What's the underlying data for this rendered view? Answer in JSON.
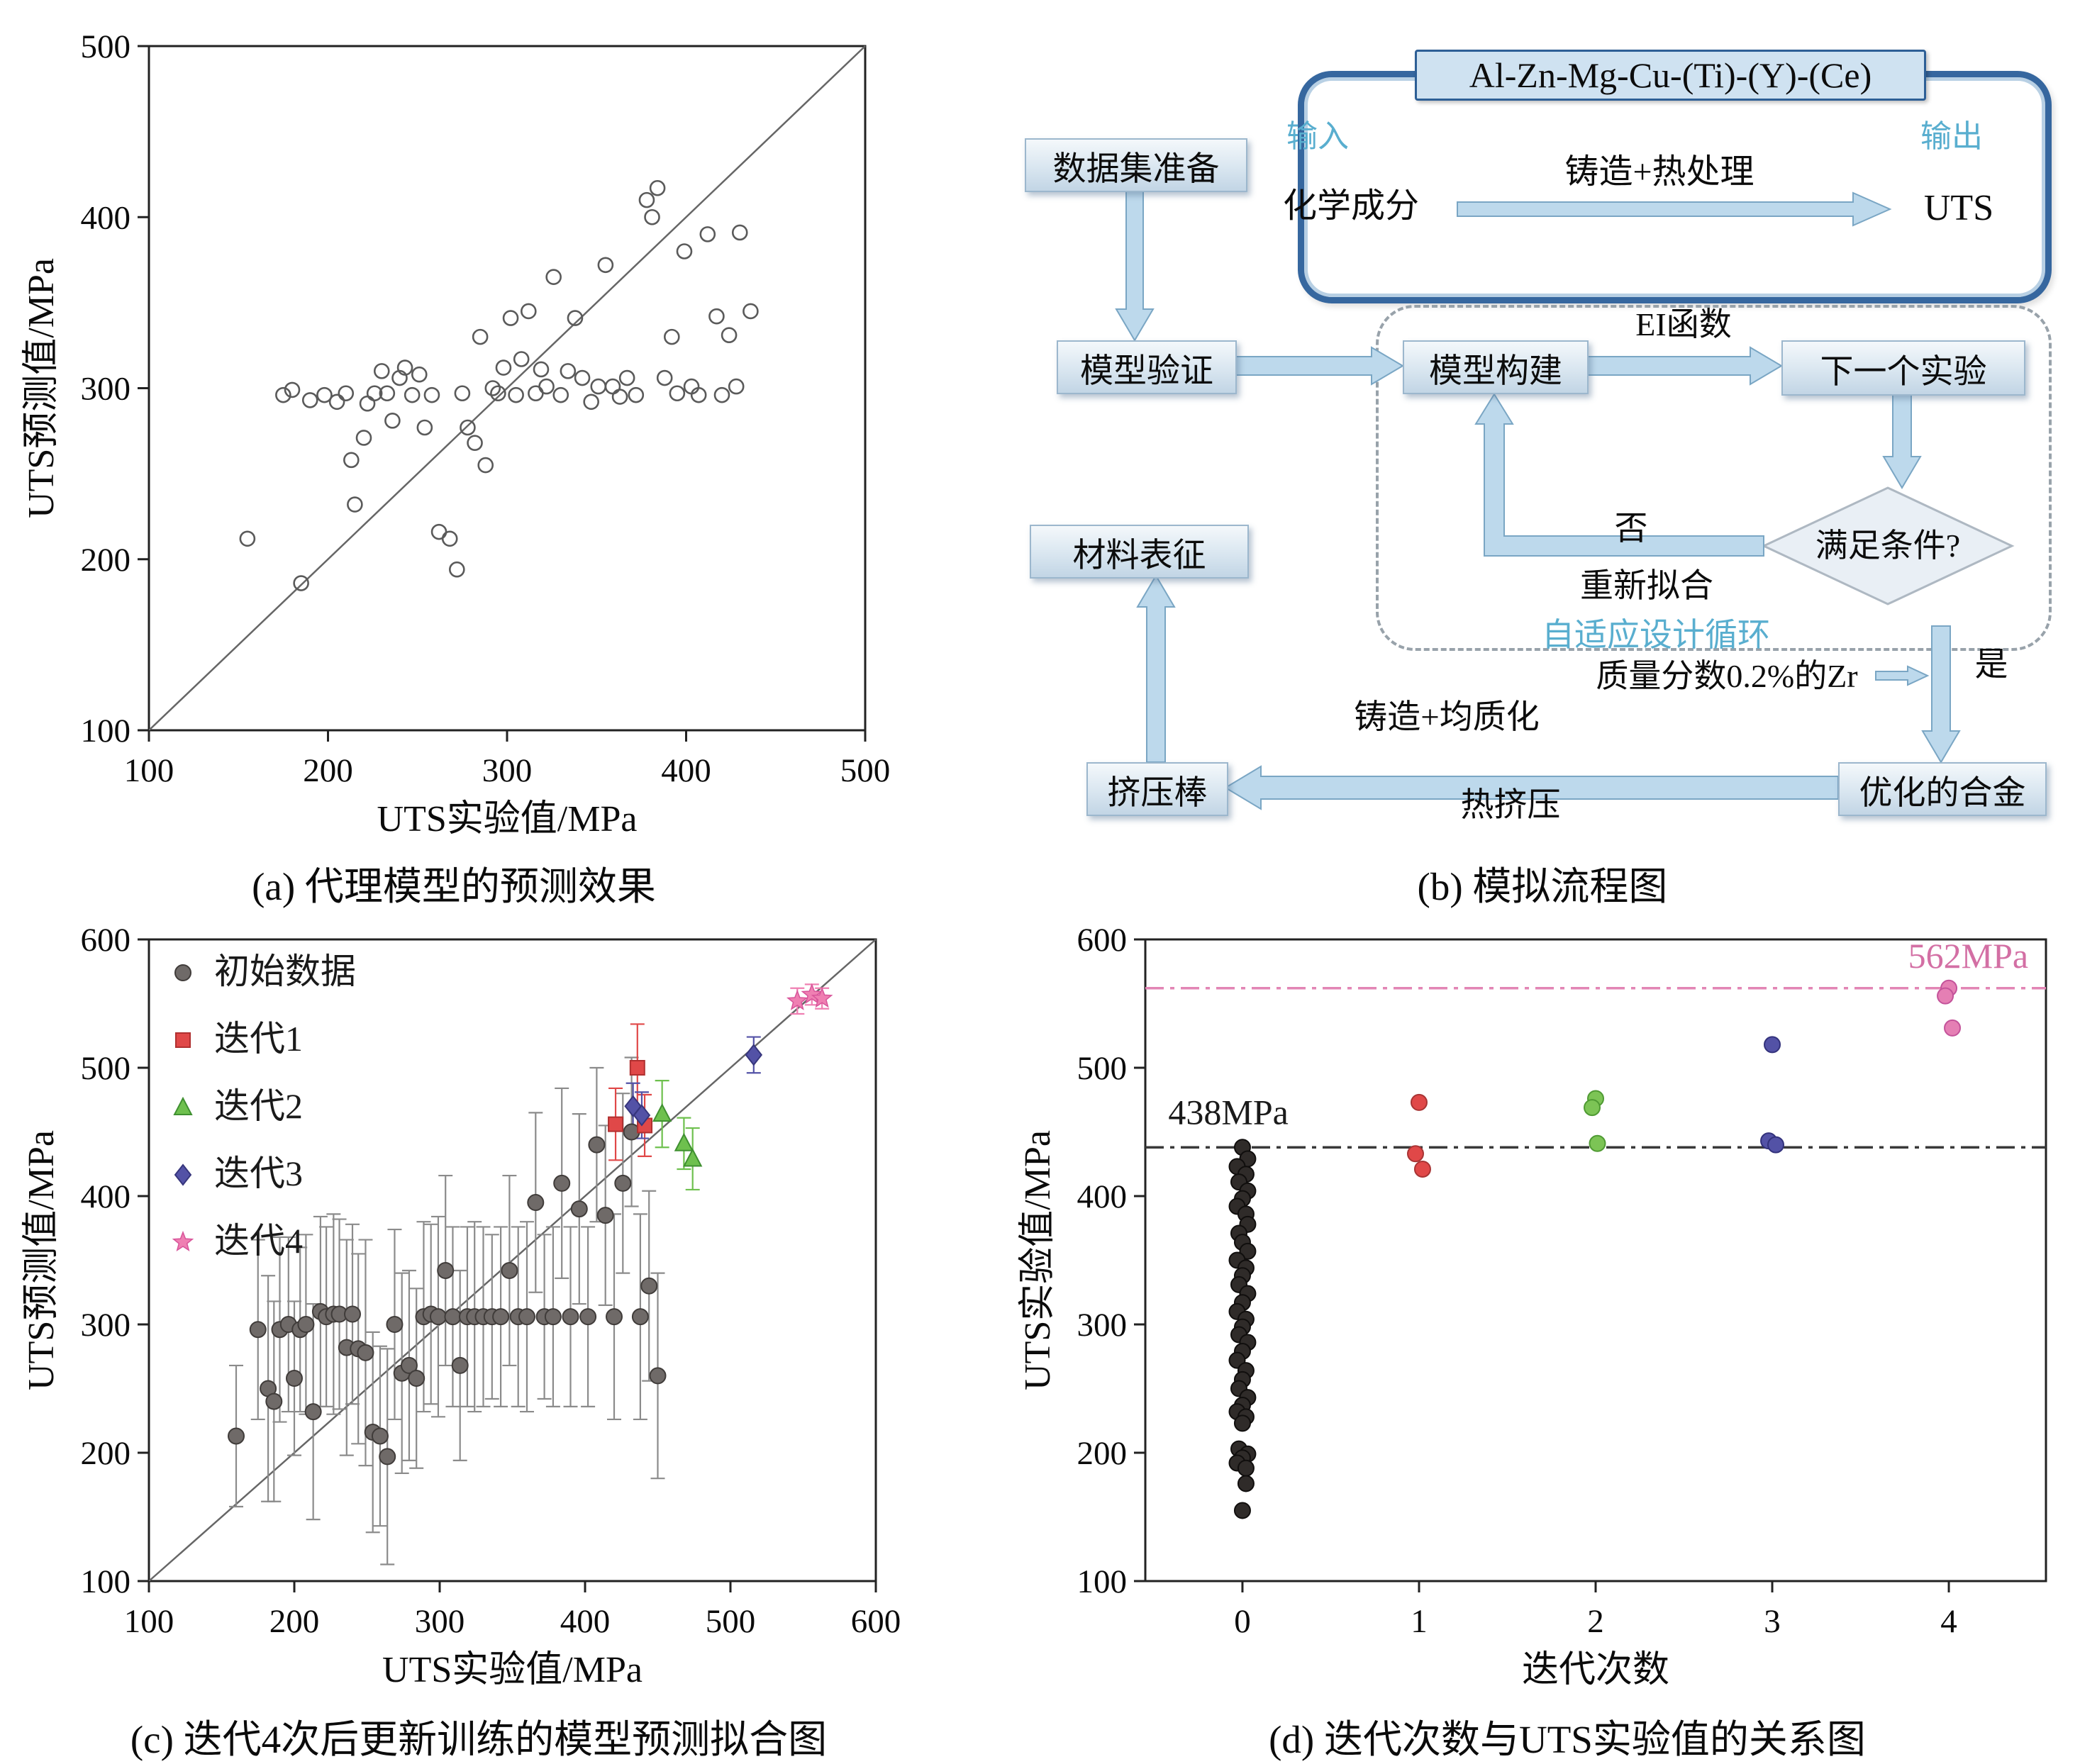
{
  "captions": {
    "a": "(a) 代理模型的预测效果",
    "b": "(b) 模拟流程图",
    "c": "(c) 迭代4次后更新训练的模型预测拟合图",
    "d": "(d) 迭代次数与UTS实验值的关系图"
  },
  "flowchart": {
    "alloy_title": "Al-Zn-Mg-Cu-(Ti)-(Y)-(Ce)",
    "input_label": "输入",
    "output_label": "输出",
    "chem_comp": "化学成分",
    "cast_heat": "铸造+热处理",
    "uts": "UTS",
    "dataset_prep": "数据集准备",
    "model_validation": "模型验证",
    "model_build": "模型构建",
    "ei_func": "EI函数",
    "next_exp": "下一个实验",
    "condition": "满足条件?",
    "no": "否",
    "refit": "重新拟合",
    "adaptive_loop": "自适应设计循环",
    "material_char": "材料表征",
    "zr_note": "质量分数0.2%的Zr",
    "yes": "是",
    "optimized_alloy": "优化的合金",
    "cast_homog": "铸造+均质化",
    "hot_extrusion": "热挤压",
    "extruded_bar": "挤压棒",
    "accent_blue": "#59aecf",
    "frame_blue": "#36679f",
    "arrow_fill": "#bdd9ec"
  },
  "chart_data": [
    {
      "id": "chart-a",
      "type": "scatter",
      "title": "",
      "xlabel": "UTS实验值/MPa",
      "ylabel": "UTS预测值/MPa",
      "xlim": [
        100,
        500
      ],
      "ylim": [
        100,
        500
      ],
      "xticks": [
        100,
        200,
        300,
        400,
        500
      ],
      "yticks": [
        100,
        200,
        300,
        400,
        500
      ],
      "diagonal": true,
      "legend": false,
      "series": [
        {
          "name": "",
          "marker": "circle-open",
          "color": "#5a5a5a",
          "points": [
            [
              155,
              212
            ],
            [
              175,
              296
            ],
            [
              180,
              299
            ],
            [
              185,
              186
            ],
            [
              190,
              293
            ],
            [
              198,
              296
            ],
            [
              205,
              292
            ],
            [
              210,
              297
            ],
            [
              213,
              258
            ],
            [
              215,
              232
            ],
            [
              220,
              271
            ],
            [
              222,
              291
            ],
            [
              226,
              297
            ],
            [
              230,
              310
            ],
            [
              233,
              297
            ],
            [
              236,
              281
            ],
            [
              240,
              306
            ],
            [
              243,
              312
            ],
            [
              247,
              296
            ],
            [
              251,
              308
            ],
            [
              254,
              277
            ],
            [
              258,
              296
            ],
            [
              262,
              216
            ],
            [
              268,
              212
            ],
            [
              272,
              194
            ],
            [
              275,
              297
            ],
            [
              278,
              277
            ],
            [
              282,
              268
            ],
            [
              285,
              330
            ],
            [
              288,
              255
            ],
            [
              292,
              300
            ],
            [
              295,
              297
            ],
            [
              298,
              312
            ],
            [
              302,
              341
            ],
            [
              305,
              296
            ],
            [
              308,
              317
            ],
            [
              312,
              345
            ],
            [
              316,
              297
            ],
            [
              319,
              311
            ],
            [
              322,
              301
            ],
            [
              326,
              365
            ],
            [
              330,
              296
            ],
            [
              334,
              310
            ],
            [
              338,
              341
            ],
            [
              342,
              306
            ],
            [
              347,
              292
            ],
            [
              351,
              301
            ],
            [
              355,
              372
            ],
            [
              359,
              301
            ],
            [
              363,
              295
            ],
            [
              367,
              306
            ],
            [
              372,
              296
            ],
            [
              378,
              410
            ],
            [
              381,
              400
            ],
            [
              384,
              417
            ],
            [
              388,
              306
            ],
            [
              392,
              330
            ],
            [
              395,
              297
            ],
            [
              399,
              380
            ],
            [
              403,
              301
            ],
            [
              407,
              296
            ],
            [
              412,
              390
            ],
            [
              417,
              342
            ],
            [
              420,
              296
            ],
            [
              424,
              331
            ],
            [
              428,
              301
            ],
            [
              430,
              391
            ],
            [
              436,
              345
            ]
          ]
        }
      ]
    },
    {
      "id": "chart-c",
      "type": "scatter",
      "title": "",
      "xlabel": "UTS实验值/MPa",
      "ylabel": "UTS预测值/MPa",
      "xlim": [
        100,
        600
      ],
      "ylim": [
        100,
        600
      ],
      "xticks": [
        100,
        200,
        300,
        400,
        500,
        600
      ],
      "yticks": [
        100,
        200,
        300,
        400,
        500,
        600
      ],
      "diagonal": true,
      "legend": true,
      "series": [
        {
          "name": "初始数据",
          "marker": "circle",
          "color": "#6f6a68",
          "edge": "#403c3a",
          "err_color": "#8b8b8b",
          "points": [
            [
              160,
              213,
              55
            ],
            [
              175,
              296,
              70
            ],
            [
              182,
              250,
              88
            ],
            [
              186,
              240,
              78
            ],
            [
              190,
              296,
              72
            ],
            [
              196,
              300,
              68
            ],
            [
              200,
              258,
              60
            ],
            [
              204,
              296,
              64
            ],
            [
              208,
              300,
              70
            ],
            [
              213,
              232,
              84
            ],
            [
              218,
              310,
              74
            ],
            [
              222,
              306,
              70
            ],
            [
              227,
              308,
              78
            ],
            [
              231,
              308,
              74
            ],
            [
              236,
              282,
              84
            ],
            [
              240,
              308,
              70
            ],
            [
              244,
              281,
              74
            ],
            [
              249,
              278,
              88
            ],
            [
              254,
              216,
              78
            ],
            [
              259,
              213,
              70
            ],
            [
              264,
              197,
              84
            ],
            [
              269,
              300,
              74
            ],
            [
              274,
              262,
              78
            ],
            [
              279,
              268,
              74
            ],
            [
              284,
              258,
              70
            ],
            [
              289,
              306,
              74
            ],
            [
              294,
              308,
              70
            ],
            [
              299,
              306,
              78
            ],
            [
              304,
              342,
              74
            ],
            [
              309,
              306,
              70
            ],
            [
              314,
              268,
              74
            ],
            [
              319,
              306,
              70
            ],
            [
              324,
              306,
              74
            ],
            [
              330,
              306,
              70
            ],
            [
              336,
              306,
              64
            ],
            [
              342,
              306,
              70
            ],
            [
              348,
              342,
              74
            ],
            [
              354,
              306,
              70
            ],
            [
              360,
              306,
              74
            ],
            [
              366,
              395,
              70
            ],
            [
              372,
              306,
              64
            ],
            [
              378,
              306,
              70
            ],
            [
              384,
              410,
              74
            ],
            [
              390,
              306,
              70
            ],
            [
              396,
              390,
              74
            ],
            [
              402,
              306,
              70
            ],
            [
              408,
              440,
              60
            ],
            [
              414,
              385,
              70
            ],
            [
              420,
              306,
              80
            ],
            [
              426,
              410,
              70
            ],
            [
              432,
              450,
              58
            ],
            [
              438,
              306,
              80
            ],
            [
              444,
              330,
              74
            ],
            [
              450,
              260,
              80
            ]
          ]
        },
        {
          "name": "迭代1",
          "marker": "square",
          "color": "#e04848",
          "edge": "#b03030",
          "err_color": "#e04848",
          "points": [
            [
              421,
              456,
              28
            ],
            [
              436,
              500,
              34
            ],
            [
              441,
              455,
              24
            ]
          ]
        },
        {
          "name": "迭代2",
          "marker": "triangle",
          "color": "#6ec04e",
          "edge": "#3f9030",
          "err_color": "#6ec04e",
          "points": [
            [
              453,
              464,
              26
            ],
            [
              468,
              441,
              20
            ],
            [
              474,
              429,
              24
            ]
          ]
        },
        {
          "name": "迭代3",
          "marker": "diamond",
          "color": "#5352a6",
          "edge": "#37367d",
          "err_color": "#5352a6",
          "points": [
            [
              433,
              470,
              18
            ],
            [
              439,
              463,
              18
            ],
            [
              516,
              510,
              14
            ]
          ]
        },
        {
          "name": "迭代4",
          "marker": "star",
          "color": "#ef7fb2",
          "edge": "#d8549a",
          "err_color": "#ef7fb2",
          "points": [
            [
              546,
              552,
              10
            ],
            [
              556,
              557,
              8
            ],
            [
              563,
              554,
              8
            ]
          ]
        }
      ]
    },
    {
      "id": "chart-d",
      "type": "scatter",
      "title": "",
      "xlabel": "迭代次数",
      "ylabel": "UTS实验值/MPa",
      "xlim": [
        -0.55,
        4.55
      ],
      "ylim": [
        100,
        600
      ],
      "xticks": [
        0,
        1,
        2,
        3,
        4
      ],
      "yticks": [
        100,
        200,
        300,
        400,
        500,
        600
      ],
      "diagonal": false,
      "legend": false,
      "ref_lines": [
        {
          "y": 438,
          "color": "#3a3a3a"
        },
        {
          "y": 562,
          "color": "#e286b5"
        }
      ],
      "annotations": [
        {
          "x": -0.42,
          "y": 456,
          "text": "438MPa",
          "color": "#1a1a1a",
          "anchor": "start"
        },
        {
          "x": 4.45,
          "y": 578,
          "text": "562MPa",
          "color": "#d36fa4",
          "anchor": "end"
        }
      ],
      "series": [
        {
          "name": "迭代0",
          "marker": "circle",
          "color": "#2f2b29",
          "edge": "#100e0d",
          "points": [
            [
              0,
              438
            ],
            [
              0.03,
              429
            ],
            [
              -0.03,
              423
            ],
            [
              0.02,
              417
            ],
            [
              -0.02,
              411
            ],
            [
              0.03,
              404
            ],
            [
              0,
              398
            ],
            [
              -0.03,
              392
            ],
            [
              0.02,
              386
            ],
            [
              0.03,
              378
            ],
            [
              -0.02,
              371
            ],
            [
              0,
              364
            ],
            [
              0.03,
              357
            ],
            [
              -0.03,
              350
            ],
            [
              0.02,
              344
            ],
            [
              0,
              338
            ],
            [
              -0.02,
              331
            ],
            [
              0.03,
              324
            ],
            [
              0,
              317
            ],
            [
              -0.03,
              310
            ],
            [
              0.02,
              304
            ],
            [
              0,
              298
            ],
            [
              -0.02,
              292
            ],
            [
              0.03,
              286
            ],
            [
              0,
              279
            ],
            [
              -0.03,
              272
            ],
            [
              0.02,
              264
            ],
            [
              0,
              257
            ],
            [
              -0.02,
              250
            ],
            [
              0.03,
              243
            ],
            [
              0,
              237
            ],
            [
              -0.03,
              232
            ],
            [
              0.02,
              228
            ],
            [
              0,
              223
            ],
            [
              -0.02,
              203
            ],
            [
              0.03,
              199
            ],
            [
              0,
              196
            ],
            [
              -0.03,
              192
            ],
            [
              0.02,
              188
            ],
            [
              0.02,
              176
            ],
            [
              0,
              155
            ]
          ]
        },
        {
          "name": "迭代1",
          "marker": "circle",
          "color": "#e04848",
          "edge": "#a83434",
          "points": [
            [
              1,
              473
            ],
            [
              0.98,
              433
            ],
            [
              1.02,
              421
            ]
          ]
        },
        {
          "name": "迭代2",
          "marker": "circle",
          "color": "#7cc455",
          "edge": "#4f9a33",
          "points": [
            [
              2,
              476
            ],
            [
              1.98,
              469
            ],
            [
              2.01,
              441
            ]
          ]
        },
        {
          "name": "迭代3",
          "marker": "circle",
          "color": "#5352a6",
          "edge": "#33327c",
          "points": [
            [
              3,
              518
            ],
            [
              2.98,
              443
            ],
            [
              3.02,
              440
            ]
          ]
        },
        {
          "name": "迭代4",
          "marker": "circle",
          "color": "#e57fb4",
          "edge": "#c4539a",
          "points": [
            [
              4,
              562
            ],
            [
              3.98,
              556
            ],
            [
              4.02,
              531
            ]
          ]
        }
      ]
    }
  ]
}
